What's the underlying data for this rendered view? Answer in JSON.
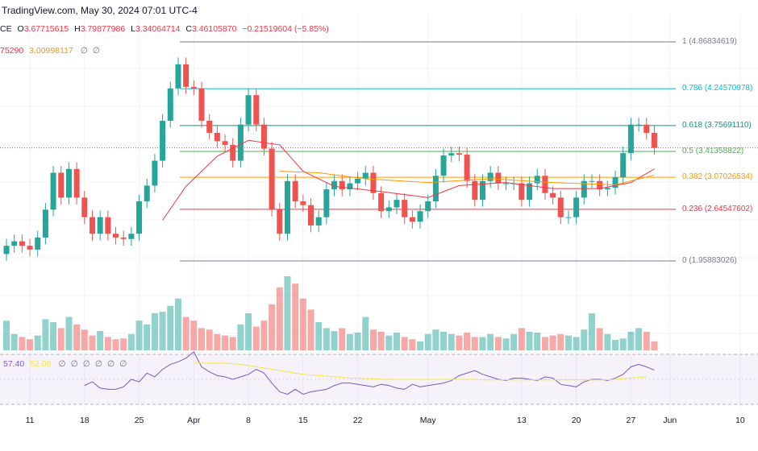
{
  "header": {
    "title": "TradingView.com, May 30, 2024 07:01 UTC-4"
  },
  "ohlc": {
    "symbol_suffix": "CE",
    "o_label": "O",
    "o": "3.67715615",
    "h_label": "H",
    "h": "3.79877986",
    "l_label": "L",
    "l": "3.34064714",
    "c_label": "C",
    "c": "3.46105870",
    "change": "−0.21519604 (−5.85%)"
  },
  "ma_legend": {
    "red_value": "75290",
    "orange_value": "3.00998117",
    "icons": [
      "hidden-icon",
      "hidden-icon"
    ]
  },
  "rsi_legend": {
    "rsi": "57.40",
    "ma": "52.06",
    "icons": [
      "∅",
      "∅",
      "∅",
      "∅",
      "∅",
      "∅"
    ]
  },
  "colors": {
    "up": "#26a69a",
    "down": "#ef5350",
    "ema_fast": "#f23645",
    "ema_slow": "#ff9800",
    "rsi": "#7e57c2",
    "rsi_ma": "#f7e54a"
  },
  "x_axis": [
    {
      "label": "11",
      "day": 3
    },
    {
      "label": "18",
      "day": 10
    },
    {
      "label": "25",
      "day": 17
    },
    {
      "label": "Apr",
      "day": 24
    },
    {
      "label": "8",
      "day": 31
    },
    {
      "label": "15",
      "day": 38
    },
    {
      "label": "22",
      "day": 45
    },
    {
      "label": "May",
      "day": 54
    },
    {
      "label": "13",
      "day": 66
    },
    {
      "label": "20",
      "day": 73
    },
    {
      "label": "27",
      "day": 80
    },
    {
      "label": "Jun",
      "day": 85
    },
    {
      "label": "10",
      "day": 94
    }
  ],
  "fib_levels": [
    {
      "label": "1 (4.86834619)",
      "price": 4.868,
      "color": "#787b86"
    },
    {
      "label": "0.786 (4.24570978)",
      "price": 4.246,
      "color": "#00bcd4"
    },
    {
      "label": "0.618 (3.75691110)",
      "price": 3.757,
      "color": "#089981"
    },
    {
      "label": "0.5 (3.41358822)",
      "price": 3.414,
      "color": "#4caf50"
    },
    {
      "label": "0.382 (3.07026534)",
      "price": 3.07,
      "color": "#ff9800"
    },
    {
      "label": "0.236 (2.64547602)",
      "price": 2.645,
      "color": "#f23645"
    },
    {
      "label": "0 (1.95883026)",
      "price": 1.959,
      "color": "#787b86"
    }
  ],
  "candles_close": [
    2.16,
    2.22,
    2.16,
    2.11,
    2.27,
    2.64,
    3.13,
    2.8,
    3.18,
    2.8,
    2.54,
    2.32,
    2.54,
    2.32,
    2.27,
    2.25,
    2.32,
    2.75,
    2.96,
    3.29,
    3.82,
    4.25,
    4.57,
    4.27,
    4.25,
    3.82,
    3.66,
    3.55,
    3.5,
    3.29,
    3.77,
    4.16,
    3.77,
    3.45,
    2.64,
    2.32,
    3.02,
    2.75,
    2.7,
    2.43,
    2.54,
    2.91,
    3.02,
    2.91,
    2.99,
    3.05,
    3.13,
    2.86,
    2.62,
    2.67,
    2.77,
    2.54,
    2.48,
    2.62,
    2.75,
    3.09,
    3.36,
    3.39,
    3.37,
    3.02,
    2.77,
    3.02,
    3.13,
    2.99,
    2.99,
    2.99,
    2.77,
    2.99,
    3.09,
    2.86,
    2.8,
    2.54,
    2.54,
    2.8,
    3.02,
    3.02,
    2.91,
    2.93,
    3.07,
    3.39,
    3.77,
    3.77,
    3.66,
    3.46
  ],
  "volume": [
    40,
    22,
    18,
    15,
    20,
    42,
    38,
    30,
    45,
    35,
    28,
    20,
    26,
    18,
    15,
    16,
    22,
    40,
    35,
    50,
    52,
    60,
    70,
    45,
    40,
    30,
    28,
    22,
    20,
    18,
    35,
    50,
    32,
    40,
    62,
    85,
    100,
    90,
    70,
    55,
    38,
    30,
    26,
    30,
    22,
    24,
    45,
    28,
    25,
    20,
    24,
    18,
    15,
    12,
    22,
    28,
    25,
    22,
    20,
    24,
    18,
    18,
    22,
    18,
    16,
    22,
    30,
    25,
    24,
    18,
    20,
    22,
    20,
    18,
    28,
    50,
    30,
    22,
    14,
    16,
    25,
    30,
    25,
    12
  ],
  "rsi_start_day": 10,
  "rsi": [
    45,
    48,
    43,
    42,
    42,
    44,
    50,
    48,
    55,
    52,
    58,
    62,
    64,
    67,
    72,
    60,
    56,
    53,
    52,
    50,
    52,
    54,
    58,
    55,
    47,
    40,
    38,
    42,
    38,
    40,
    41,
    42,
    45,
    47,
    47,
    46,
    45,
    44,
    46,
    45,
    43,
    42,
    46,
    44,
    45,
    46,
    47,
    49,
    53,
    55,
    57,
    54,
    52,
    50,
    49,
    51,
    51,
    50,
    49,
    52,
    51,
    46,
    45,
    44,
    48,
    50,
    50,
    49,
    51,
    54,
    60,
    62,
    60,
    57.4
  ],
  "rsi_ma_start_day": 24,
  "rsi_ma": [
    63,
    63,
    63,
    63,
    63,
    62.5,
    62,
    61,
    60,
    59,
    58,
    57,
    56,
    55,
    54,
    53.5,
    53,
    52.5,
    52,
    51.5,
    51,
    51,
    50.5,
    50.5,
    50,
    50,
    50,
    50,
    50,
    50,
    50,
    50,
    50,
    50,
    50,
    50,
    50,
    49.5,
    49.5,
    49.5,
    49.5,
    49.5,
    49.5,
    49.5,
    49.5,
    49.5,
    49.5,
    49.5,
    49.5,
    49.5,
    49.5,
    49.5,
    49.5,
    49.5,
    50,
    50.5,
    51,
    51.5,
    52.06
  ],
  "ema_fast": [
    [
      20,
      2.5
    ],
    [
      23,
      2.95
    ],
    [
      27,
      3.35
    ],
    [
      31,
      3.56
    ],
    [
      35,
      3.5
    ],
    [
      38,
      3.15
    ],
    [
      42,
      2.95
    ],
    [
      48,
      2.88
    ],
    [
      54,
      2.8
    ],
    [
      58,
      2.96
    ],
    [
      64,
      3.0
    ],
    [
      70,
      2.92
    ],
    [
      76,
      2.92
    ],
    [
      80,
      3.0
    ],
    [
      83,
      3.18
    ]
  ],
  "ema_slow": [
    [
      35,
      3.15
    ],
    [
      40,
      3.13
    ],
    [
      46,
      3.05
    ],
    [
      54,
      3.0
    ],
    [
      62,
      3.05
    ],
    [
      70,
      3.0
    ],
    [
      78,
      2.97
    ],
    [
      83,
      3.1
    ]
  ]
}
